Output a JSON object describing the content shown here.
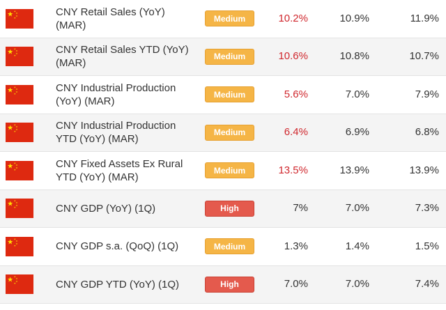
{
  "colors": {
    "flag_red": "#de2910",
    "flag_star": "#ffde00",
    "medium_badge": "#f5b546",
    "high_badge": "#e45a4d",
    "miss_red": "#d0282e"
  },
  "rows": [
    {
      "event": "CNY Retail Sales (YoY) (MAR)",
      "importance": "Medium",
      "actual": "10.2%",
      "forecast": "10.9%",
      "previous": "11.9%",
      "actual_color": "red"
    },
    {
      "event": "CNY Retail Sales YTD (YoY) (MAR)",
      "importance": "Medium",
      "actual": "10.6%",
      "forecast": "10.8%",
      "previous": "10.7%",
      "actual_color": "red"
    },
    {
      "event": "CNY Industrial Production (YoY) (MAR)",
      "importance": "Medium",
      "actual": "5.6%",
      "forecast": "7.0%",
      "previous": "7.9%",
      "actual_color": "red"
    },
    {
      "event": "CNY Industrial Production YTD (YoY) (MAR)",
      "importance": "Medium",
      "actual": "6.4%",
      "forecast": "6.9%",
      "previous": "6.8%",
      "actual_color": "red"
    },
    {
      "event": "CNY Fixed Assets Ex Rural YTD (YoY) (MAR)",
      "importance": "Medium",
      "actual": "13.5%",
      "forecast": "13.9%",
      "previous": "13.9%",
      "actual_color": "red"
    },
    {
      "event": "CNY GDP (YoY) (1Q)",
      "importance": "High",
      "actual": "7%",
      "forecast": "7.0%",
      "previous": "7.3%",
      "actual_color": "black"
    },
    {
      "event": "CNY GDP s.a. (QoQ) (1Q)",
      "importance": "Medium",
      "actual": "1.3%",
      "forecast": "1.4%",
      "previous": "1.5%",
      "actual_color": "black"
    },
    {
      "event": "CNY GDP YTD (YoY) (1Q)",
      "importance": "High",
      "actual": "7.0%",
      "forecast": "7.0%",
      "previous": "7.4%",
      "actual_color": "black"
    }
  ]
}
